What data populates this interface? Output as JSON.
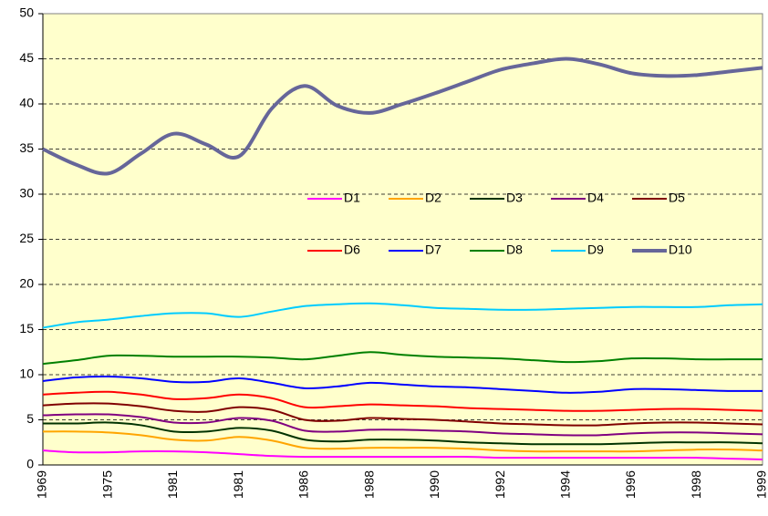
{
  "chart_data": {
    "type": "line",
    "categories": [
      "1969",
      null,
      "1975",
      null,
      "1981",
      null,
      "1981",
      null,
      "1986",
      null,
      "1988",
      null,
      "1990",
      null,
      "1992",
      null,
      "1994",
      null,
      "1996",
      null,
      "1998",
      null,
      "1999"
    ],
    "series": [
      {
        "name": "D1",
        "color": "#ff00ff",
        "width": 2,
        "values": [
          1.6,
          1.4,
          1.4,
          1.5,
          1.5,
          1.4,
          1.2,
          1.0,
          0.9,
          0.9,
          0.9,
          0.9,
          0.9,
          0.9,
          0.8,
          0.8,
          0.8,
          0.8,
          0.8,
          0.8,
          0.8,
          0.7,
          0.6
        ]
      },
      {
        "name": "D2",
        "color": "#ffa500",
        "width": 2,
        "values": [
          3.7,
          3.7,
          3.6,
          3.3,
          2.8,
          2.7,
          3.1,
          2.7,
          1.9,
          1.8,
          1.9,
          1.9,
          1.9,
          1.8,
          1.6,
          1.5,
          1.5,
          1.5,
          1.5,
          1.6,
          1.7,
          1.7,
          1.6
        ]
      },
      {
        "name": "D3",
        "color": "#003300",
        "width": 2,
        "values": [
          4.6,
          4.6,
          4.7,
          4.4,
          3.7,
          3.7,
          4.1,
          3.8,
          2.8,
          2.6,
          2.8,
          2.8,
          2.7,
          2.5,
          2.4,
          2.3,
          2.3,
          2.3,
          2.4,
          2.5,
          2.5,
          2.5,
          2.4
        ]
      },
      {
        "name": "D4",
        "color": "#800080",
        "width": 2,
        "values": [
          5.5,
          5.6,
          5.6,
          5.3,
          4.7,
          4.7,
          5.2,
          4.9,
          3.8,
          3.7,
          3.9,
          3.9,
          3.8,
          3.7,
          3.5,
          3.4,
          3.3,
          3.3,
          3.5,
          3.6,
          3.6,
          3.5,
          3.4
        ]
      },
      {
        "name": "D5",
        "color": "#800000",
        "width": 2,
        "values": [
          6.6,
          6.8,
          6.8,
          6.5,
          6.0,
          5.9,
          6.4,
          6.1,
          5.0,
          4.9,
          5.2,
          5.1,
          5.0,
          4.8,
          4.6,
          4.5,
          4.4,
          4.4,
          4.6,
          4.7,
          4.7,
          4.6,
          4.5
        ]
      },
      {
        "name": "D6",
        "color": "#ff0000",
        "width": 2,
        "values": [
          7.8,
          8.0,
          8.1,
          7.8,
          7.3,
          7.4,
          7.8,
          7.4,
          6.4,
          6.5,
          6.7,
          6.6,
          6.5,
          6.3,
          6.2,
          6.1,
          6.0,
          6.0,
          6.1,
          6.2,
          6.2,
          6.1,
          6.0
        ]
      },
      {
        "name": "D7",
        "color": "#0000ff",
        "width": 2,
        "values": [
          9.3,
          9.7,
          9.8,
          9.6,
          9.2,
          9.2,
          9.6,
          9.1,
          8.5,
          8.7,
          9.1,
          8.9,
          8.7,
          8.6,
          8.4,
          8.2,
          8.0,
          8.1,
          8.4,
          8.4,
          8.3,
          8.2,
          8.2
        ]
      },
      {
        "name": "D8",
        "color": "#008000",
        "width": 2,
        "values": [
          11.2,
          11.6,
          12.1,
          12.1,
          12.0,
          12.0,
          12.0,
          11.9,
          11.7,
          12.1,
          12.5,
          12.2,
          12.0,
          11.9,
          11.8,
          11.6,
          11.4,
          11.5,
          11.8,
          11.8,
          11.7,
          11.7,
          11.7
        ]
      },
      {
        "name": "D9",
        "color": "#00ccff",
        "width": 2,
        "values": [
          15.2,
          15.8,
          16.1,
          16.5,
          16.8,
          16.8,
          16.4,
          17.0,
          17.6,
          17.8,
          17.9,
          17.7,
          17.4,
          17.3,
          17.2,
          17.2,
          17.3,
          17.4,
          17.5,
          17.5,
          17.5,
          17.7,
          17.8
        ]
      },
      {
        "name": "D10",
        "color": "#666699",
        "width": 4,
        "values": [
          35.0,
          33.3,
          32.3,
          34.5,
          36.7,
          35.5,
          34.2,
          39.5,
          42.0,
          39.8,
          39.0,
          40.0,
          41.2,
          42.5,
          43.8,
          44.5,
          45.0,
          44.4,
          43.4,
          43.1,
          43.2,
          43.6,
          44.0
        ]
      }
    ],
    "ylim": [
      0,
      50
    ],
    "yticks": [
      0,
      5,
      10,
      15,
      20,
      25,
      30,
      35,
      40,
      45,
      50
    ],
    "grid": true,
    "background": "#ffffcc",
    "legend": "center"
  }
}
